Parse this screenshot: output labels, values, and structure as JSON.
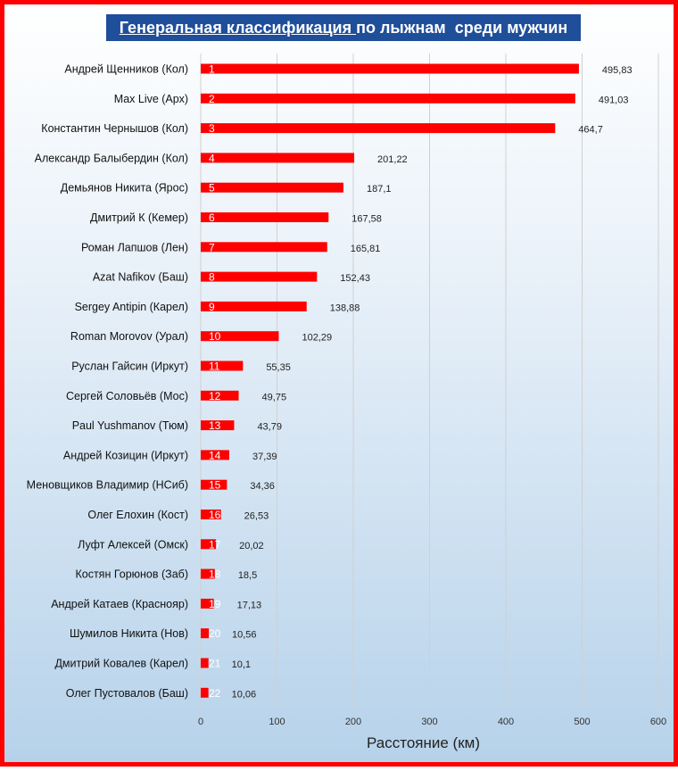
{
  "chart_data": {
    "type": "bar",
    "orientation": "horizontal",
    "title_underlined": "Генеральная классификация ",
    "title_rest": "по лыжнам  среди мужчин",
    "xlabel": "Расстояние (км)",
    "xlim": [
      0,
      600
    ],
    "xticks": [
      0,
      100,
      200,
      300,
      400,
      500,
      600
    ],
    "grid": true,
    "bar_color": "#ff0000",
    "title_bg": "#1f4e9a",
    "categories": [
      "Андрей Щенников (Кол)",
      "Max Live (Арх)",
      "Константин Чернышов (Кол)",
      "Александр Балыбердин (Кол)",
      "Демьянов Никита (Ярос)",
      "Дмитрий К (Кемер)",
      "Роман Лапшов (Лен)",
      "Azat Nafikov (Баш)",
      "Sergey Antipin (Карел)",
      "Roman Morovov (Урал)",
      "Руслан Гайсин (Иркут)",
      "Сергей Соловьёв (Мос)",
      "Paul Yushmanov (Тюм)",
      "Андрей Козицин (Иркут)",
      "Меновщиков Владимир (НСиб)",
      "Олег Елохин (Кост)",
      "Луфт Алексей (Омск)",
      "Костян Горюнов (Заб)",
      "Андрей Катаев (Краснояр)",
      "Шумилов Никита (Нов)",
      "Дмитрий Ковалев (Карел)",
      "Олег Пустовалов (Баш)"
    ],
    "ranks": [
      "1",
      "2",
      "3",
      "4",
      "5",
      "6",
      "7",
      "8",
      "9",
      "10",
      "11",
      "12",
      "13",
      "14",
      "15",
      "16",
      "17",
      "18",
      "19",
      "20",
      "21",
      "22"
    ],
    "values": [
      495.83,
      491.03,
      464.7,
      201.22,
      187.1,
      167.58,
      165.81,
      152.43,
      138.88,
      102.29,
      55.35,
      49.75,
      43.79,
      37.39,
      34.36,
      26.53,
      20.02,
      18.5,
      17.13,
      10.56,
      10.1,
      10.06
    ],
    "value_labels": [
      "495,83",
      "491,03",
      "464,7",
      "201,22",
      "187,1",
      "167,58",
      "165,81",
      "152,43",
      "138,88",
      "102,29",
      "55,35",
      "49,75",
      "43,79",
      "37,39",
      "34,36",
      "26,53",
      "20,02",
      "18,5",
      "17,13",
      "10,56",
      "10,1",
      "10,06"
    ]
  }
}
